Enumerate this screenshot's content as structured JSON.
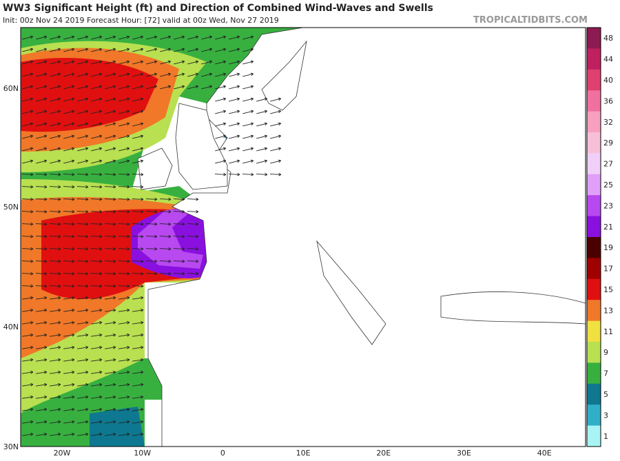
{
  "header": {
    "title": "WW3 Significant Height (ft) and Direction of Combined Wind-Waves and Swells",
    "subtitle": "Init: 00z Nov 24 2019   Forecast Hour: [72]   valid at 00z Wed, Nov 27 2019",
    "watermark": "TROPICALTIDBITS.COM"
  },
  "map": {
    "lat_labels": [
      "60N",
      "50N",
      "40N",
      "30N"
    ],
    "lon_labels": [
      "20W",
      "10W",
      "0",
      "10E",
      "20E",
      "30E",
      "40E"
    ]
  },
  "colorbar": {
    "labels": [
      "48",
      "44",
      "40",
      "36",
      "32",
      "29",
      "27",
      "25",
      "23",
      "21",
      "19",
      "17",
      "15",
      "13",
      "11",
      "9",
      "7",
      "5",
      "3",
      "1"
    ],
    "colors": [
      "#8e1a52",
      "#c02060",
      "#e04070",
      "#f070a0",
      "#f8a0c0",
      "#f8c0d8",
      "#f0d0f8",
      "#e0a0f8",
      "#b848f0",
      "#8a10e0",
      "#4a0000",
      "#a00000",
      "#e01010",
      "#f07828",
      "#f0e040",
      "#b8e050",
      "#38b040",
      "#0e7890",
      "#30b0c8",
      "#a8f4f4"
    ]
  }
}
